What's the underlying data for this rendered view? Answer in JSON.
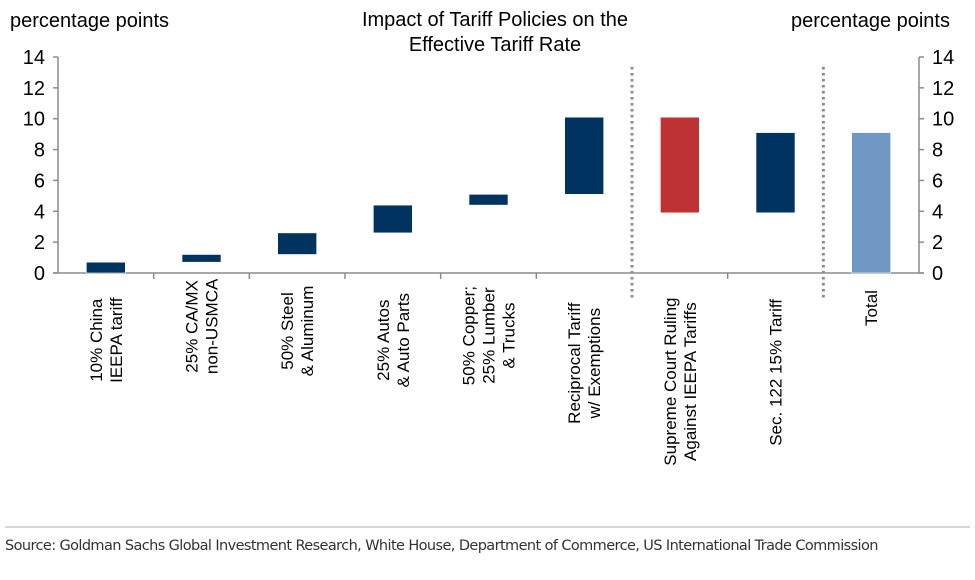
{
  "header": {
    "unit_left": "percentage points",
    "unit_right": "percentage points",
    "title_line1": "Impact of Tariff Policies on the",
    "title_line2": "Effective Tariff Rate"
  },
  "footer": {
    "source": "Source: Goldman Sachs Global Investment Research, White House, Department of Commerce, US International Trade Commission"
  },
  "colors": {
    "increase": "#003360",
    "decrease": "#BE3134",
    "total": "#7098C4",
    "axis": "#8c8c8c",
    "divider": "#8c8c8c"
  },
  "chart_data": {
    "type": "bar",
    "subtype": "waterfall",
    "title": "Impact of Tariff Policies on the Effective Tariff Rate",
    "ylabel": "percentage points",
    "ylabel_right": "percentage points",
    "ylim": [
      0,
      14
    ],
    "yticks": [
      0,
      2,
      4,
      6,
      8,
      10,
      12,
      14
    ],
    "grid": false,
    "legend": "none",
    "categories": [
      [
        "10% China",
        "IEEPA tariff"
      ],
      [
        "25% CA/MX",
        "non-USMCA"
      ],
      [
        "50% Steel",
        "& Aluminum"
      ],
      [
        "25% Autos",
        "& Auto Parts"
      ],
      [
        "50% Copper;",
        "25% Lumber",
        "& Trucks"
      ],
      [
        "Reciprocal Tariff",
        "w/ Exemptions"
      ],
      [
        "Supreme Court Ruling",
        "Against IEEPA Tariffs"
      ],
      [
        "Sec. 122 15% Tariff"
      ],
      [
        "Total"
      ]
    ],
    "bars": [
      {
        "start": 0.0,
        "end": 0.7,
        "change": 0.7,
        "kind": "increase"
      },
      {
        "start": 0.7,
        "end": 1.2,
        "change": 0.5,
        "kind": "increase"
      },
      {
        "start": 1.2,
        "end": 2.6,
        "change": 1.4,
        "kind": "increase"
      },
      {
        "start": 2.6,
        "end": 4.4,
        "change": 1.8,
        "kind": "increase"
      },
      {
        "start": 4.4,
        "end": 5.1,
        "change": 0.7,
        "kind": "increase"
      },
      {
        "start": 5.1,
        "end": 10.1,
        "change": 5.0,
        "kind": "increase"
      },
      {
        "start": 10.1,
        "end": 3.9,
        "change": -6.2,
        "kind": "decrease"
      },
      {
        "start": 3.9,
        "end": 9.1,
        "change": 5.2,
        "kind": "increase"
      },
      {
        "start": 0.0,
        "end": 9.1,
        "change": 9.1,
        "kind": "total"
      }
    ],
    "dividers_after_category": [
      5,
      7
    ]
  }
}
